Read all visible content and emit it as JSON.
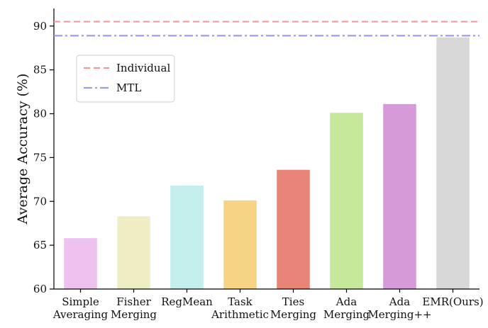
{
  "chart_data": {
    "type": "bar",
    "categories": [
      [
        "Simple",
        "Averaging"
      ],
      [
        "Fisher",
        "Merging"
      ],
      [
        "RegMean"
      ],
      [
        "Task",
        "Arithmetic"
      ],
      [
        "Ties",
        "Merging"
      ],
      [
        "Ada",
        "Merging"
      ],
      [
        "Ada",
        "Merging++"
      ],
      [
        "EMR(Ours)"
      ]
    ],
    "values": [
      65.8,
      68.3,
      71.8,
      70.1,
      73.6,
      80.1,
      81.1,
      88.7
    ],
    "bar_colors": [
      "#efc1ee",
      "#efedc3",
      "#c3eeec",
      "#f6d484",
      "#e88476",
      "#c6e89b",
      "#d59ad7",
      "#d8d8d8"
    ],
    "ylabel": "Average Accuracy (%)",
    "xlabel": "",
    "title": "",
    "ylim": [
      60,
      92
    ],
    "yticks": [
      60,
      65,
      70,
      75,
      80,
      85,
      90
    ],
    "reference_lines": [
      {
        "name": "Individual",
        "value": 90.5,
        "color": "#f29a9a",
        "style": "dashed"
      },
      {
        "name": "MTL",
        "value": 88.9,
        "color": "#9d9df0",
        "style": "dashdot"
      }
    ],
    "legend_position": "upper-left",
    "grid": false
  }
}
